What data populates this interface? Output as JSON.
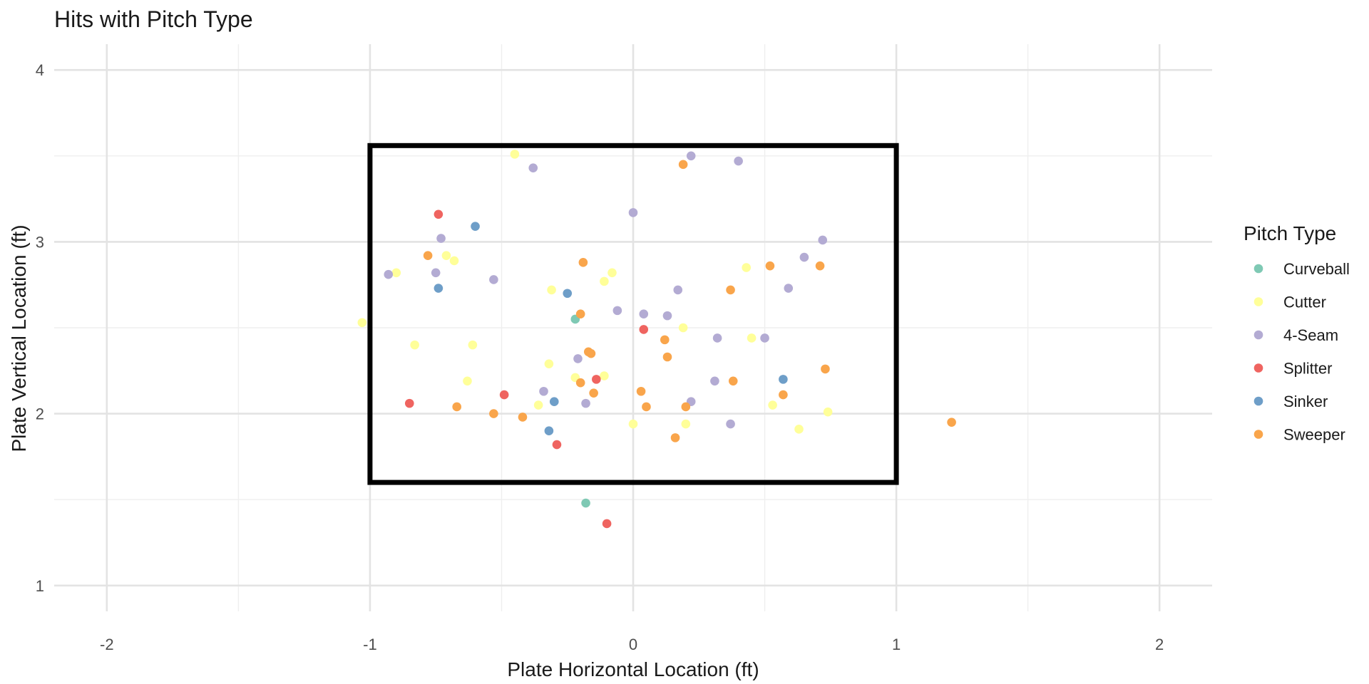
{
  "chart_data": {
    "type": "scatter",
    "title": "Hits with Pitch Type",
    "xlabel": "Plate Horizontal Location (ft)",
    "ylabel": "Plate Vertical Location (ft)",
    "xlim": [
      -2.2,
      2.2
    ],
    "ylim": [
      0.85,
      4.15
    ],
    "x_ticks": [
      -2,
      -1,
      0,
      1,
      2
    ],
    "y_ticks": [
      1,
      2,
      3,
      4
    ],
    "x_tick_labels": [
      "-2",
      "-1",
      "0",
      "1",
      "2"
    ],
    "y_tick_labels": [
      "1",
      "2",
      "3",
      "4"
    ],
    "grid": true,
    "legend_title": "Pitch Type",
    "legend_position": "right",
    "strike_zone": {
      "x": [
        -1.0,
        1.0
      ],
      "y": [
        1.6,
        3.56
      ]
    },
    "series": [
      {
        "name": "Curveball",
        "color": "#7fc9b4",
        "points": [
          [
            -0.22,
            2.55
          ],
          [
            -0.18,
            1.48
          ]
        ]
      },
      {
        "name": "Cutter",
        "color": "#ffff99",
        "points": [
          [
            -0.45,
            3.51
          ],
          [
            -0.9,
            2.82
          ],
          [
            -0.71,
            2.92
          ],
          [
            -0.68,
            2.89
          ],
          [
            -0.11,
            2.77
          ],
          [
            -0.08,
            2.82
          ],
          [
            -0.31,
            2.72
          ],
          [
            -1.03,
            2.53
          ],
          [
            -0.83,
            2.4
          ],
          [
            -0.61,
            2.4
          ],
          [
            -0.63,
            2.19
          ],
          [
            -0.32,
            2.29
          ],
          [
            -0.36,
            2.05
          ],
          [
            -0.22,
            2.21
          ],
          [
            -0.11,
            2.22
          ],
          [
            0.19,
            2.5
          ],
          [
            0.45,
            2.44
          ],
          [
            0.43,
            2.85
          ],
          [
            0.0,
            1.94
          ],
          [
            0.2,
            1.94
          ],
          [
            0.53,
            2.05
          ],
          [
            0.63,
            1.91
          ],
          [
            0.74,
            2.01
          ]
        ]
      },
      {
        "name": "4-Seam",
        "color": "#b3abd3",
        "points": [
          [
            -0.38,
            3.43
          ],
          [
            -0.73,
            3.02
          ],
          [
            -0.93,
            2.81
          ],
          [
            -0.75,
            2.82
          ],
          [
            -0.53,
            2.78
          ],
          [
            0.0,
            3.17
          ],
          [
            0.22,
            3.5
          ],
          [
            0.4,
            3.47
          ],
          [
            0.72,
            3.01
          ],
          [
            0.65,
            2.91
          ],
          [
            0.59,
            2.73
          ],
          [
            0.17,
            2.72
          ],
          [
            -0.06,
            2.6
          ],
          [
            0.04,
            2.58
          ],
          [
            0.13,
            2.57
          ],
          [
            0.32,
            2.44
          ],
          [
            0.5,
            2.44
          ],
          [
            -0.21,
            2.32
          ],
          [
            -0.34,
            2.13
          ],
          [
            -0.18,
            2.06
          ],
          [
            0.31,
            2.19
          ],
          [
            0.22,
            2.07
          ],
          [
            0.37,
            1.94
          ]
        ]
      },
      {
        "name": "Splitter",
        "color": "#ef6460",
        "points": [
          [
            -0.74,
            3.16
          ],
          [
            0.04,
            2.49
          ],
          [
            -0.14,
            2.2
          ],
          [
            -0.49,
            2.11
          ],
          [
            -0.85,
            2.06
          ],
          [
            -0.29,
            1.82
          ],
          [
            -0.1,
            1.36
          ]
        ]
      },
      {
        "name": "Sinker",
        "color": "#6e9ec8",
        "points": [
          [
            -0.6,
            3.09
          ],
          [
            -0.74,
            2.73
          ],
          [
            -0.25,
            2.7
          ],
          [
            -0.3,
            2.07
          ],
          [
            -0.32,
            1.9
          ],
          [
            0.57,
            2.2
          ]
        ]
      },
      {
        "name": "Sweeper",
        "color": "#f9a54b",
        "points": [
          [
            0.19,
            3.45
          ],
          [
            -0.78,
            2.92
          ],
          [
            -0.19,
            2.88
          ],
          [
            0.52,
            2.86
          ],
          [
            0.71,
            2.86
          ],
          [
            0.37,
            2.72
          ],
          [
            -0.2,
            2.58
          ],
          [
            0.12,
            2.43
          ],
          [
            -0.17,
            2.36
          ],
          [
            -0.16,
            2.35
          ],
          [
            0.13,
            2.33
          ],
          [
            0.73,
            2.26
          ],
          [
            -0.2,
            2.18
          ],
          [
            0.38,
            2.19
          ],
          [
            0.03,
            2.13
          ],
          [
            -0.15,
            2.12
          ],
          [
            0.57,
            2.11
          ],
          [
            -0.67,
            2.04
          ],
          [
            0.05,
            2.04
          ],
          [
            0.2,
            2.04
          ],
          [
            -0.53,
            2.0
          ],
          [
            -0.42,
            1.98
          ],
          [
            0.16,
            1.86
          ],
          [
            1.21,
            1.95
          ]
        ]
      }
    ]
  }
}
